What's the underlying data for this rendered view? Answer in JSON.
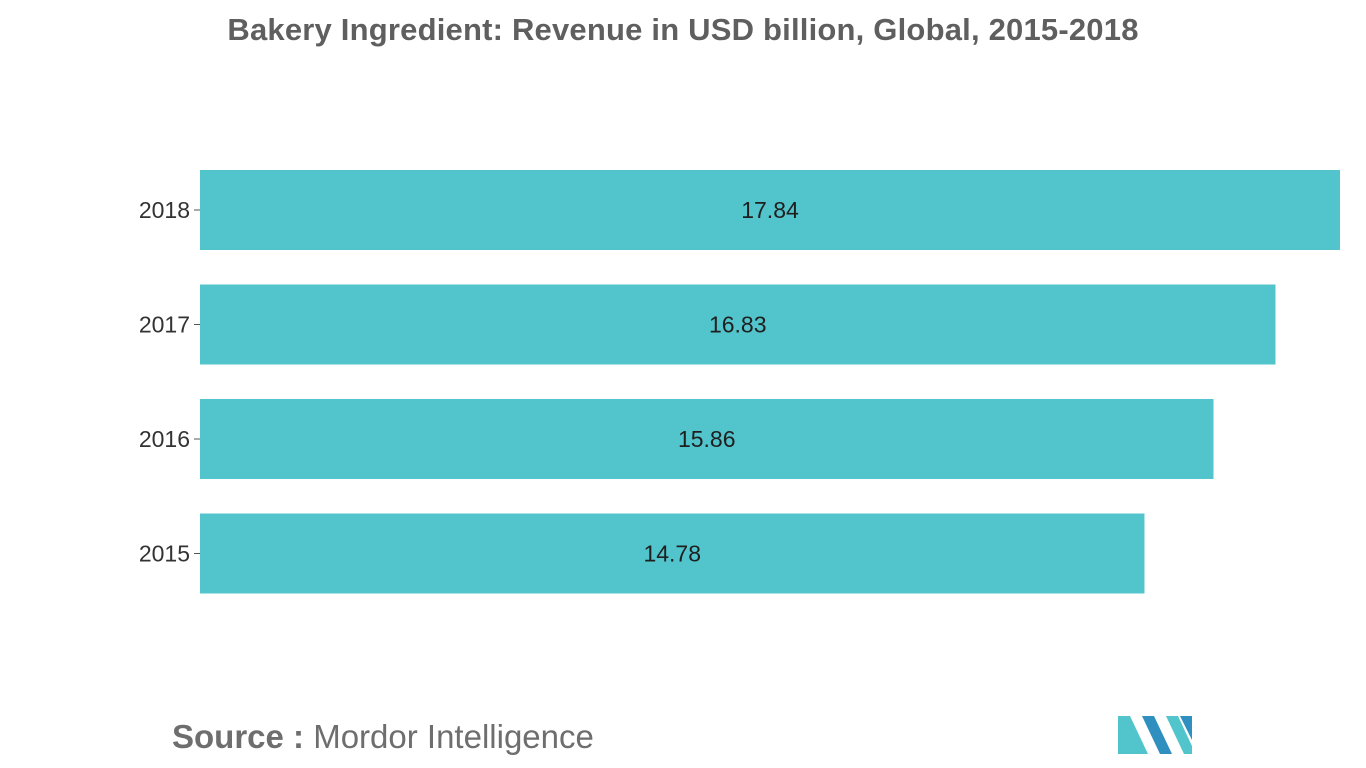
{
  "chart_data": {
    "type": "bar",
    "orientation": "horizontal",
    "title": "Bakery Ingredient: Revenue in USD billion, Global, 2015-2018",
    "categories": [
      "2018",
      "2017",
      "2016",
      "2015"
    ],
    "values": [
      17.84,
      16.83,
      15.86,
      14.78
    ],
    "value_labels": [
      "17.84",
      "16.83",
      "15.86",
      "14.78"
    ],
    "xlabel": "",
    "ylabel": "",
    "xlim": [
      0,
      17.84
    ],
    "grid": false,
    "bar_color": "#52c4cb"
  },
  "source": {
    "label": "Source :",
    "text": "Mordor Intelligence"
  },
  "colors": {
    "title": "#5f5f5f",
    "tick_label": "#333333",
    "data_label": "#1f1f1f",
    "source": "#6e6e6e",
    "logo_dark": "#2f8fbf",
    "logo_light": "#52c4cb"
  }
}
